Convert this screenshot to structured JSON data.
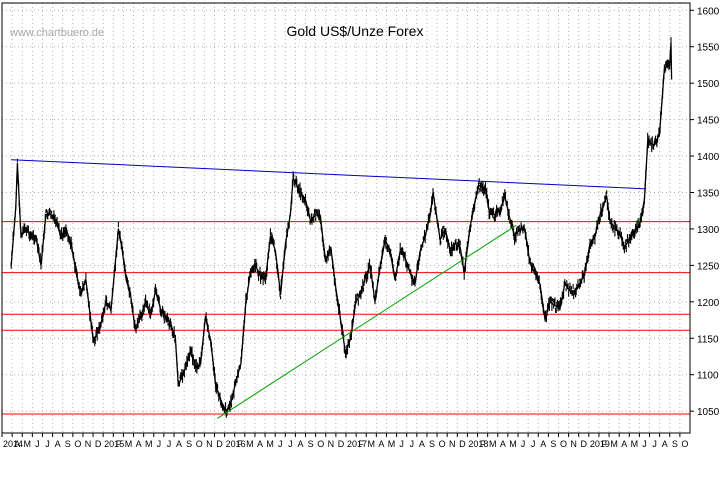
{
  "watermark": "www.chartbuero.de",
  "chart_data": {
    "type": "line",
    "title": "Gold US$/Unze Forex",
    "xlabel": "",
    "ylabel": "",
    "y_axis_side": "right",
    "ylim": [
      1020,
      1610
    ],
    "yticks": [
      1050,
      1100,
      1150,
      1200,
      1250,
      1300,
      1350,
      1400,
      1450,
      1500,
      1550,
      1600
    ],
    "grid": "dotted",
    "x_tick_labels": [
      "2014",
      "A",
      "M",
      "J",
      "J",
      "A",
      "S",
      "O",
      "N",
      "D",
      "2015",
      "F",
      "M",
      "A",
      "M",
      "J",
      "J",
      "A",
      "S",
      "O",
      "N",
      "D",
      "2016",
      "F",
      "M",
      "A",
      "M",
      "J",
      "J",
      "A",
      "S",
      "O",
      "N",
      "D",
      "2017",
      "F",
      "M",
      "A",
      "M",
      "J",
      "J",
      "A",
      "S",
      "O",
      "N",
      "D",
      "2018",
      "F",
      "M",
      "A",
      "M",
      "J",
      "J",
      "A",
      "S",
      "O",
      "N",
      "D",
      "2019",
      "F",
      "M",
      "A",
      "M",
      "J",
      "J",
      "A",
      "S",
      "O"
    ],
    "series": [
      {
        "name": "",
        "style": "ohlc-bars",
        "points": [
          [
            "2014-03-01",
            1250
          ],
          [
            "2014-03-15",
            1330
          ],
          [
            "2014-03-20",
            1390
          ],
          [
            "2014-03-31",
            1290
          ],
          [
            "2014-04-15",
            1300
          ],
          [
            "2014-04-30",
            1290
          ],
          [
            "2014-05-15",
            1290
          ],
          [
            "2014-05-31",
            1250
          ],
          [
            "2014-06-15",
            1320
          ],
          [
            "2014-06-30",
            1320
          ],
          [
            "2014-07-15",
            1310
          ],
          [
            "2014-07-31",
            1290
          ],
          [
            "2014-08-15",
            1300
          ],
          [
            "2014-08-31",
            1280
          ],
          [
            "2014-09-15",
            1240
          ],
          [
            "2014-09-30",
            1210
          ],
          [
            "2014-10-15",
            1230
          ],
          [
            "2014-10-31",
            1170
          ],
          [
            "2014-11-07",
            1145
          ],
          [
            "2014-11-30",
            1170
          ],
          [
            "2014-12-15",
            1200
          ],
          [
            "2014-12-31",
            1190
          ],
          [
            "2015-01-22",
            1300
          ],
          [
            "2015-01-31",
            1280
          ],
          [
            "2015-02-15",
            1230
          ],
          [
            "2015-02-28",
            1210
          ],
          [
            "2015-03-15",
            1160
          ],
          [
            "2015-03-31",
            1180
          ],
          [
            "2015-04-15",
            1200
          ],
          [
            "2015-04-30",
            1180
          ],
          [
            "2015-05-15",
            1215
          ],
          [
            "2015-05-31",
            1190
          ],
          [
            "2015-06-15",
            1180
          ],
          [
            "2015-06-30",
            1170
          ],
          [
            "2015-07-15",
            1150
          ],
          [
            "2015-07-24",
            1085
          ],
          [
            "2015-08-15",
            1110
          ],
          [
            "2015-08-31",
            1135
          ],
          [
            "2015-09-15",
            1110
          ],
          [
            "2015-09-30",
            1115
          ],
          [
            "2015-10-15",
            1180
          ],
          [
            "2015-10-31",
            1145
          ],
          [
            "2015-11-15",
            1085
          ],
          [
            "2015-11-30",
            1065
          ],
          [
            "2015-12-17",
            1050
          ],
          [
            "2015-12-31",
            1060
          ],
          [
            "2016-01-15",
            1090
          ],
          [
            "2016-01-31",
            1115
          ],
          [
            "2016-02-15",
            1200
          ],
          [
            "2016-02-29",
            1240
          ],
          [
            "2016-03-15",
            1250
          ],
          [
            "2016-03-31",
            1235
          ],
          [
            "2016-04-15",
            1230
          ],
          [
            "2016-04-30",
            1290
          ],
          [
            "2016-05-15",
            1270
          ],
          [
            "2016-05-31",
            1210
          ],
          [
            "2016-06-15",
            1280
          ],
          [
            "2016-06-30",
            1320
          ],
          [
            "2016-07-08",
            1370
          ],
          [
            "2016-07-31",
            1350
          ],
          [
            "2016-08-15",
            1340
          ],
          [
            "2016-08-31",
            1310
          ],
          [
            "2016-09-15",
            1320
          ],
          [
            "2016-09-30",
            1315
          ],
          [
            "2016-10-15",
            1255
          ],
          [
            "2016-10-31",
            1275
          ],
          [
            "2016-11-15",
            1220
          ],
          [
            "2016-11-30",
            1175
          ],
          [
            "2016-12-15",
            1130
          ],
          [
            "2016-12-31",
            1150
          ],
          [
            "2017-01-15",
            1200
          ],
          [
            "2017-01-31",
            1210
          ],
          [
            "2017-02-15",
            1235
          ],
          [
            "2017-02-28",
            1250
          ],
          [
            "2017-03-15",
            1200
          ],
          [
            "2017-03-31",
            1250
          ],
          [
            "2017-04-15",
            1285
          ],
          [
            "2017-04-30",
            1270
          ],
          [
            "2017-05-15",
            1230
          ],
          [
            "2017-05-31",
            1270
          ],
          [
            "2017-06-15",
            1260
          ],
          [
            "2017-06-30",
            1240
          ],
          [
            "2017-07-15",
            1225
          ],
          [
            "2017-07-31",
            1270
          ],
          [
            "2017-08-15",
            1290
          ],
          [
            "2017-08-31",
            1320
          ],
          [
            "2017-09-08",
            1350
          ],
          [
            "2017-09-30",
            1285
          ],
          [
            "2017-10-15",
            1300
          ],
          [
            "2017-10-31",
            1270
          ],
          [
            "2017-11-15",
            1280
          ],
          [
            "2017-11-30",
            1275
          ],
          [
            "2017-12-12",
            1240
          ],
          [
            "2017-12-31",
            1305
          ],
          [
            "2018-01-15",
            1340
          ],
          [
            "2018-01-25",
            1360
          ],
          [
            "2018-02-15",
            1355
          ],
          [
            "2018-02-28",
            1320
          ],
          [
            "2018-03-15",
            1320
          ],
          [
            "2018-03-31",
            1325
          ],
          [
            "2018-04-15",
            1345
          ],
          [
            "2018-04-30",
            1315
          ],
          [
            "2018-05-15",
            1290
          ],
          [
            "2018-05-31",
            1300
          ],
          [
            "2018-06-15",
            1300
          ],
          [
            "2018-06-30",
            1255
          ],
          [
            "2018-07-15",
            1240
          ],
          [
            "2018-07-31",
            1225
          ],
          [
            "2018-08-16",
            1175
          ],
          [
            "2018-08-31",
            1200
          ],
          [
            "2018-09-15",
            1195
          ],
          [
            "2018-09-30",
            1190
          ],
          [
            "2018-10-15",
            1225
          ],
          [
            "2018-10-31",
            1215
          ],
          [
            "2018-11-15",
            1215
          ],
          [
            "2018-11-30",
            1225
          ],
          [
            "2018-12-15",
            1240
          ],
          [
            "2018-12-31",
            1280
          ],
          [
            "2019-01-15",
            1290
          ],
          [
            "2019-01-31",
            1320
          ],
          [
            "2019-02-20",
            1345
          ],
          [
            "2019-02-28",
            1315
          ],
          [
            "2019-03-15",
            1300
          ],
          [
            "2019-03-31",
            1295
          ],
          [
            "2019-04-15",
            1275
          ],
          [
            "2019-04-30",
            1285
          ],
          [
            "2019-05-15",
            1295
          ],
          [
            "2019-05-31",
            1305
          ],
          [
            "2019-06-15",
            1340
          ],
          [
            "2019-06-25",
            1420
          ],
          [
            "2019-07-15",
            1415
          ],
          [
            "2019-07-31",
            1430
          ],
          [
            "2019-08-15",
            1520
          ],
          [
            "2019-08-31",
            1525
          ],
          [
            "2019-09-04",
            1555
          ],
          [
            "2019-09-06",
            1505
          ]
        ]
      }
    ],
    "trendlines": [
      {
        "color": "#0000cc",
        "from": [
          "2014-03-01",
          1395
        ],
        "to": [
          "2019-06-20",
          1355
        ]
      },
      {
        "color": "#00a000",
        "from": [
          "2015-11-20",
          1040
        ],
        "to": [
          "2018-05-20",
          1305
        ]
      }
    ],
    "horizontal_lines": [
      {
        "color": "#ff0000",
        "y": 1310
      },
      {
        "color": "#ff0000",
        "y": 1240
      },
      {
        "color": "#ff0000",
        "y": 1183
      },
      {
        "color": "#ff0000",
        "y": 1161
      },
      {
        "color": "#ff0000",
        "y": 1046
      }
    ],
    "colors": {
      "price": "#000000",
      "grid": "#b0b0b0",
      "support_resistance": "#ff0000",
      "downtrend": "#0000cc",
      "uptrend": "#00a000"
    }
  }
}
